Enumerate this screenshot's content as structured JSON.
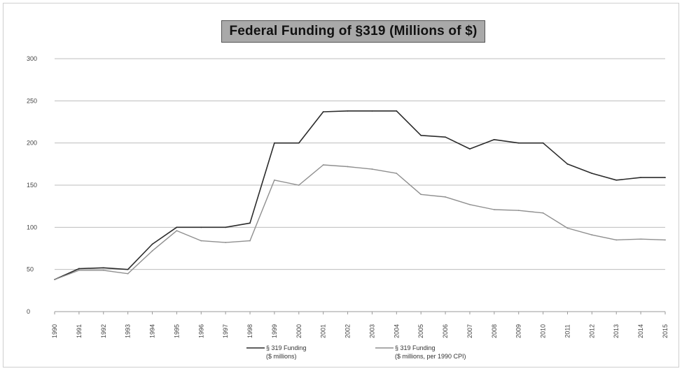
{
  "chart_data": {
    "type": "line",
    "title": "Federal Funding of §319 (Millions of $)",
    "xlabel": "",
    "ylabel": "",
    "ylim": [
      0,
      300
    ],
    "yticks": [
      0,
      50,
      100,
      150,
      200,
      250,
      300
    ],
    "grid": true,
    "legend_position": "bottom",
    "categories": [
      "1990",
      "1991",
      "1992",
      "1993",
      "1994",
      "1995",
      "1996",
      "1997",
      "1998",
      "1999",
      "2000",
      "2001",
      "2002",
      "2003",
      "2004",
      "2005",
      "2006",
      "2007",
      "2008",
      "2009",
      "2010",
      "2011",
      "2012",
      "2013",
      "2014",
      "2015"
    ],
    "series": [
      {
        "name": "§ 319 Funding ($ millions)",
        "legend_lines": [
          "§ 319 Funding",
          "($ millions)"
        ],
        "color": "#2b2b2b",
        "values": [
          38,
          51,
          52,
          50,
          80,
          100,
          100,
          100,
          105,
          200,
          200,
          237,
          238,
          238,
          238,
          209,
          207,
          193,
          204,
          200,
          200,
          175,
          164,
          156,
          159,
          159
        ]
      },
      {
        "name": "§ 319 Funding ($ millions, per 1990 CPI)",
        "legend_lines": [
          "§ 319 Funding",
          "($ millions, per 1990 CPI)"
        ],
        "color": "#8f8f8f",
        "values": [
          38,
          49,
          49,
          45,
          72,
          96,
          84,
          82,
          84,
          156,
          150,
          174,
          172,
          169,
          164,
          139,
          136,
          127,
          121,
          120,
          117,
          99,
          91,
          85,
          86,
          85
        ]
      }
    ]
  }
}
